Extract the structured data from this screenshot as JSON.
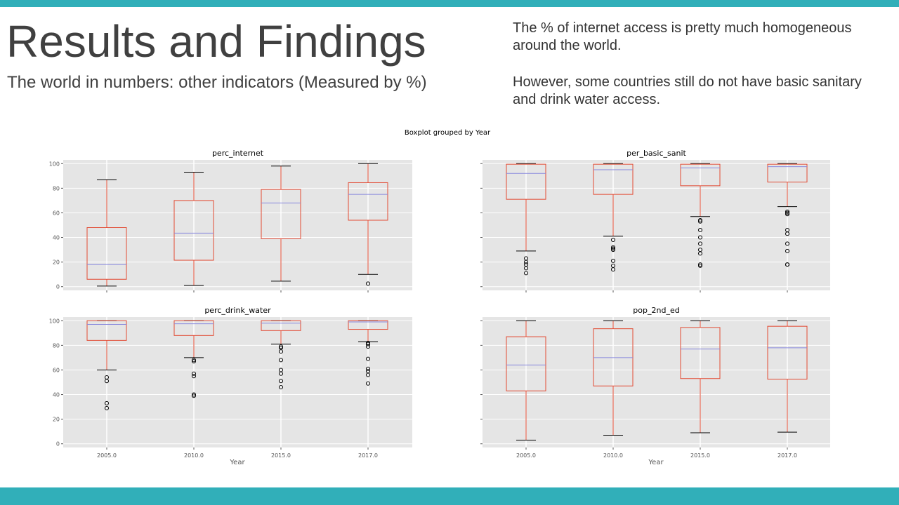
{
  "colors": {
    "accent": "#31AFB9",
    "plot_bg": "#E5E5E5",
    "grid": "#FFFFFF",
    "box": "#E24A33",
    "median": "#8888DD",
    "whisker_cap": "#000000"
  },
  "slide": {
    "title": "Results and Findings",
    "subtitle": "The world in numbers: other indicators (Measured by %)",
    "notes": [
      "The % of internet access is pretty much homogeneous around the world.",
      "However, some countries still do not have basic sanitary and drink water access."
    ]
  },
  "figure": {
    "suptitle": "Boxplot grouped by Year",
    "xlabel": "Year"
  },
  "chart_data": [
    {
      "type": "box",
      "title": "perc_internet",
      "categories": [
        "2005.0",
        "2010.0",
        "2015.0",
        "2017.0"
      ],
      "ylim": [
        -3,
        103
      ],
      "yticks": [
        0,
        20,
        40,
        60,
        80,
        100
      ],
      "grid": true,
      "boxes": [
        {
          "whislo": 0.5,
          "q1": 6,
          "med": 18,
          "q3": 48,
          "whishi": 87,
          "fliers": []
        },
        {
          "whislo": 1,
          "q1": 21.5,
          "med": 43.5,
          "q3": 70,
          "whishi": 93,
          "fliers": []
        },
        {
          "whislo": 4.5,
          "q1": 39,
          "med": 68,
          "q3": 79,
          "whishi": 98,
          "fliers": []
        },
        {
          "whislo": 10,
          "q1": 54,
          "med": 75,
          "q3": 84.5,
          "whishi": 100,
          "fliers": [
            2.5
          ]
        }
      ]
    },
    {
      "type": "box",
      "title": "per_basic_sanit",
      "categories": [
        "2005.0",
        "2010.0",
        "2015.0",
        "2017.0"
      ],
      "ylim": [
        -3,
        103
      ],
      "yticks": [
        0,
        20,
        40,
        60,
        80,
        100
      ],
      "grid": true,
      "boxes": [
        {
          "whislo": 29,
          "q1": 71,
          "med": 92,
          "q3": 99.5,
          "whishi": 100,
          "fliers": [
            23,
            20,
            18,
            15,
            11
          ]
        },
        {
          "whislo": 41,
          "q1": 75,
          "med": 95,
          "q3": 99.5,
          "whishi": 100,
          "fliers": [
            38,
            32,
            31,
            30,
            21,
            17,
            14
          ]
        },
        {
          "whislo": 57,
          "q1": 82,
          "med": 96.5,
          "q3": 99.5,
          "whishi": 100,
          "fliers": [
            54,
            53,
            46,
            40,
            35,
            30,
            27,
            18,
            17
          ]
        },
        {
          "whislo": 65,
          "q1": 85,
          "med": 97.5,
          "q3": 99.5,
          "whishi": 100,
          "fliers": [
            61,
            60,
            59,
            46,
            43,
            35,
            29,
            18,
            18
          ]
        }
      ]
    },
    {
      "type": "box",
      "title": "perc_drink_water",
      "categories": [
        "2005.0",
        "2010.0",
        "2015.0",
        "2017.0"
      ],
      "ylim": [
        -3,
        103
      ],
      "yticks": [
        0,
        20,
        40,
        60,
        80,
        100
      ],
      "grid": true,
      "boxes": [
        {
          "whislo": 60,
          "q1": 84,
          "med": 97,
          "q3": 100,
          "whishi": 100,
          "fliers": [
            54,
            51,
            33,
            29
          ]
        },
        {
          "whislo": 70,
          "q1": 88,
          "med": 97.5,
          "q3": 100,
          "whishi": 100,
          "fliers": [
            68,
            67,
            57,
            55,
            40,
            39
          ]
        },
        {
          "whislo": 81,
          "q1": 92,
          "med": 98,
          "q3": 100,
          "whishi": 100,
          "fliers": [
            79,
            78,
            75,
            68,
            60,
            57,
            51,
            46
          ]
        },
        {
          "whislo": 83,
          "q1": 93,
          "med": 99,
          "q3": 100,
          "whishi": 100,
          "fliers": [
            82,
            81,
            79,
            69,
            61,
            59,
            56,
            49
          ]
        }
      ]
    },
    {
      "type": "box",
      "title": "pop_2nd_ed",
      "categories": [
        "2005.0",
        "2010.0",
        "2015.0",
        "2017.0"
      ],
      "ylim": [
        -3,
        103
      ],
      "yticks": [
        0,
        20,
        40,
        60,
        80,
        100
      ],
      "grid": true,
      "boxes": [
        {
          "whislo": 3,
          "q1": 43,
          "med": 64,
          "q3": 87,
          "whishi": 100,
          "fliers": []
        },
        {
          "whislo": 7,
          "q1": 47,
          "med": 70,
          "q3": 93.5,
          "whishi": 100,
          "fliers": []
        },
        {
          "whislo": 9,
          "q1": 53,
          "med": 77,
          "q3": 94.5,
          "whishi": 100,
          "fliers": []
        },
        {
          "whislo": 9.5,
          "q1": 52.5,
          "med": 78,
          "q3": 95.5,
          "whishi": 100,
          "fliers": []
        }
      ]
    }
  ]
}
